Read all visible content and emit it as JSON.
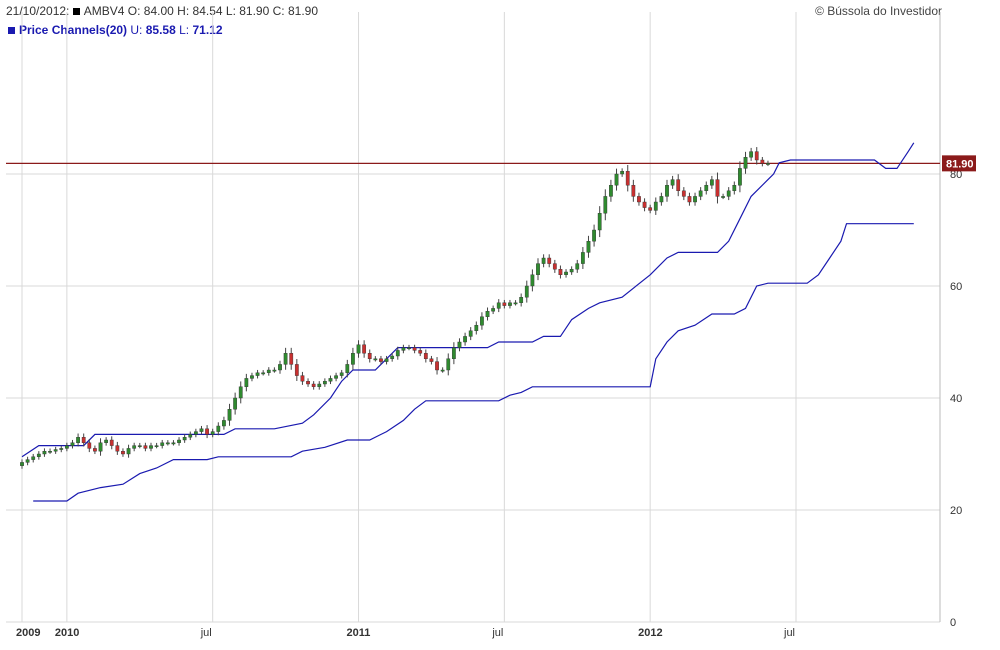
{
  "header": {
    "date": "21/10/2012:",
    "ticker": "AMBV4",
    "open_label": "O:",
    "open": "84.00",
    "high_label": "H:",
    "high": "84.54",
    "low_label": "L:",
    "low": "81.90",
    "close_label": "C:",
    "close": "81.90",
    "indicator_name": "Price Channels(20)",
    "upper_label": "U:",
    "upper": "85.58",
    "lower_label": "L:",
    "lower": "71.12",
    "credit": "© Bússola do Investidor"
  },
  "colors": {
    "up_candle": "#2f8a2f",
    "down_candle": "#c83030",
    "wick": "#444444",
    "channel": "#1a1ab0",
    "price_line": "#8b1a1a",
    "grid": "#d9d9d9",
    "header_square_price": "#000000",
    "header_square_indicator": "#1a1ab0"
  },
  "chart_data": {
    "type": "candlestick",
    "title": "AMBV4",
    "y_axis": {
      "min": 0,
      "max": 100,
      "ticks": [
        0,
        20,
        40,
        60,
        80
      ],
      "side": "right"
    },
    "x_axis": {
      "labels": [
        "2009",
        "2010",
        "jul",
        "2011",
        "jul",
        "2012",
        "jul"
      ],
      "bold": [
        true,
        true,
        false,
        true,
        false,
        true,
        false
      ],
      "weeks": [
        0,
        8,
        34,
        60,
        86,
        112,
        138
      ]
    },
    "current_price": {
      "value": 81.9,
      "label": "81.90"
    },
    "x_domain_weeks": [
      0,
      161
    ],
    "closes": [
      28.5,
      29,
      29.5,
      30,
      30.5,
      30.5,
      30.8,
      31,
      31.5,
      32,
      33,
      32,
      31,
      30.5,
      32,
      32.5,
      31.5,
      30.5,
      30,
      31,
      31.5,
      31.5,
      31,
      31.5,
      31.5,
      32,
      32,
      32,
      32.5,
      33,
      33.5,
      34,
      34.5,
      33.5,
      34,
      35,
      36,
      38,
      40,
      42,
      43.5,
      44,
      44.5,
      44.5,
      45,
      45,
      46,
      48,
      46,
      44,
      43,
      42.5,
      42,
      42.5,
      43,
      43.5,
      44,
      44.5,
      46,
      48,
      49.5,
      48,
      47,
      47,
      46.5,
      47,
      47.5,
      48.5,
      49,
      49,
      48.5,
      48,
      47,
      46.5,
      45,
      45,
      47,
      49,
      50,
      51,
      52,
      53,
      54.5,
      55.5,
      56,
      57,
      56.5,
      57,
      57,
      58,
      60,
      62,
      64,
      65,
      64,
      63,
      62,
      62.5,
      63,
      64,
      66,
      68,
      70,
      73,
      76,
      78,
      80,
      80.5,
      78,
      76,
      75,
      74,
      73.5,
      75,
      76,
      78,
      79,
      77,
      76,
      75,
      76,
      77,
      78,
      79,
      76,
      76,
      77,
      78,
      81,
      83,
      84,
      82.5,
      81.9,
      81.9
    ],
    "upper_channel": [
      [
        0,
        29.5
      ],
      [
        3,
        31.5
      ],
      [
        11,
        31.5
      ],
      [
        13,
        33.5
      ],
      [
        36,
        33.5
      ],
      [
        38,
        34.5
      ],
      [
        45,
        34.5
      ],
      [
        50,
        35.5
      ],
      [
        52,
        37
      ],
      [
        55,
        40
      ],
      [
        57,
        43
      ],
      [
        59,
        45
      ],
      [
        63,
        45
      ],
      [
        65,
        47
      ],
      [
        67,
        49
      ],
      [
        83,
        49
      ],
      [
        85,
        50
      ],
      [
        91,
        50
      ],
      [
        93,
        51
      ],
      [
        96,
        51
      ],
      [
        98,
        54
      ],
      [
        101,
        56
      ],
      [
        103,
        57
      ],
      [
        107,
        58
      ],
      [
        112,
        62
      ],
      [
        115,
        65
      ],
      [
        117,
        66
      ],
      [
        124,
        66
      ],
      [
        126,
        68
      ],
      [
        128,
        72
      ],
      [
        130,
        76
      ],
      [
        133,
        79
      ],
      [
        134,
        80
      ],
      [
        135,
        82
      ],
      [
        137,
        82.5
      ],
      [
        152,
        82.5
      ],
      [
        154,
        81
      ],
      [
        156,
        81
      ],
      [
        158,
        84
      ],
      [
        159,
        85.58
      ]
    ],
    "lower_channel": [
      [
        2,
        21.6
      ],
      [
        8,
        21.6
      ],
      [
        10,
        23
      ],
      [
        14,
        24
      ],
      [
        18,
        24.6
      ],
      [
        21,
        26.5
      ],
      [
        24,
        27.5
      ],
      [
        27,
        29
      ],
      [
        33,
        29
      ],
      [
        35,
        29.5
      ],
      [
        48,
        29.5
      ],
      [
        50,
        30.5
      ],
      [
        54,
        31.2
      ],
      [
        58,
        32.5
      ],
      [
        62,
        32.5
      ],
      [
        65,
        34
      ],
      [
        68,
        36
      ],
      [
        70,
        38
      ],
      [
        72,
        39.5
      ],
      [
        85,
        39.5
      ],
      [
        87,
        40.5
      ],
      [
        89,
        41
      ],
      [
        91,
        42
      ],
      [
        95,
        42
      ],
      [
        99,
        42
      ],
      [
        103,
        42
      ],
      [
        107,
        42
      ],
      [
        112,
        42
      ],
      [
        113,
        47
      ],
      [
        115,
        50
      ],
      [
        117,
        52
      ],
      [
        120,
        53
      ],
      [
        123,
        55
      ],
      [
        127,
        55
      ],
      [
        129,
        56
      ],
      [
        131,
        60
      ],
      [
        133,
        60.5
      ],
      [
        140,
        60.5
      ],
      [
        142,
        62
      ],
      [
        144,
        65
      ],
      [
        146,
        68
      ],
      [
        147,
        71.12
      ],
      [
        159,
        71.12
      ]
    ]
  }
}
